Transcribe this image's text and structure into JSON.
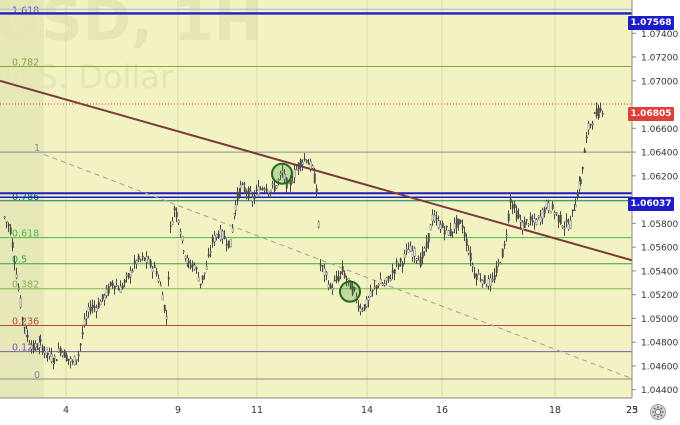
{
  "watermark": {
    "line1": "USD, 1H",
    "line2": "U.S. Dollar"
  },
  "colors": {
    "bg": "#f2f2c2",
    "bg_left": "#e6e8b8",
    "grid": "#d9d9ad",
    "candle": "#4a4a4a",
    "trend_up": "#7b3a3a",
    "trend_dashed": "#a0a0a0",
    "blue_line": "#1c1cc8",
    "fib_1": "#8a8a8a",
    "fib_786": "#0b7a70",
    "fib_618": "#49b84d",
    "fib_5": "#3aa23e",
    "fib_382": "#82b84a",
    "fib_236": "#b84a3a",
    "fib_0": "#8a8a8a",
    "last_price_badge": "#e0403a",
    "blue_badge": "#1c1cc8"
  },
  "chart_data": {
    "type": "candlestick",
    "title": "",
    "x_tick_labels": [
      "4",
      "9",
      "11",
      "14",
      "16",
      "18",
      "23",
      "25"
    ],
    "y_tick_labels": [
      "1.07400",
      "1.07200",
      "1.07000",
      "1.06600",
      "1.06400",
      "1.06200",
      "1.05800",
      "1.05600",
      "1.05400",
      "1.05200",
      "1.05000",
      "1.04800",
      "1.04600",
      "1.04400"
    ],
    "y_ticks": [
      1.074,
      1.072,
      1.07,
      1.066,
      1.064,
      1.062,
      1.058,
      1.056,
      1.054,
      1.052,
      1.05,
      1.048,
      1.046,
      1.044
    ],
    "ylim": [
      1.0433,
      1.0768
    ],
    "price_labels": [
      {
        "text": "1.07568",
        "value": 1.07568,
        "kind": "blue"
      },
      {
        "text": "1.06805",
        "value": 1.06805,
        "kind": "last"
      },
      {
        "text": "1.06037",
        "value": 1.06037,
        "kind": "blue"
      }
    ],
    "fib_levels": [
      {
        "label": "1.618",
        "value": 1.0756,
        "color": "#5a5ab0"
      },
      {
        "label": "0.782",
        "value": 1.0712,
        "color": "#8aa63a"
      },
      {
        "label": "1",
        "value": 1.064,
        "color": "#8a8a8a"
      },
      {
        "label": "0.786",
        "value": 1.0599,
        "color": "#0b7a70"
      },
      {
        "label": "0.618",
        "value": 1.0568,
        "color": "#49b84d"
      },
      {
        "label": "0.5",
        "value": 1.0546,
        "color": "#3aa23e"
      },
      {
        "label": "0.382",
        "value": 1.0525,
        "color": "#82b84a"
      },
      {
        "label": "0.236",
        "value": 1.0494,
        "color": "#b84a3a"
      },
      {
        "label": "0.123",
        "value": 1.0472,
        "color": "#7a5ab0"
      },
      {
        "label": "0",
        "value": 1.0449,
        "color": "#8a8a8a"
      }
    ],
    "trendlines": [
      {
        "name": "descending resistance",
        "from": [
          0,
          1.07
        ],
        "to": [
          640,
          1.0547
        ],
        "style": "solid"
      },
      {
        "name": "dashed channel",
        "from": [
          44,
          1.0638
        ],
        "to": [
          630,
          1.045
        ],
        "style": "dashed"
      }
    ],
    "markers": [
      {
        "shape": "circle",
        "x": 282,
        "y": 1.06218
      },
      {
        "shape": "circle",
        "x": 350,
        "y": 1.05225
      }
    ],
    "price_path": [
      [
        4,
        1.0585
      ],
      [
        10,
        1.0575
      ],
      [
        14,
        1.055
      ],
      [
        18,
        1.0525
      ],
      [
        22,
        1.05
      ],
      [
        27,
        1.0485
      ],
      [
        33,
        1.0475
      ],
      [
        40,
        1.0478
      ],
      [
        47,
        1.047
      ],
      [
        54,
        1.0465
      ],
      [
        60,
        1.0475
      ],
      [
        66,
        1.0468
      ],
      [
        72,
        1.0462
      ],
      [
        78,
        1.047
      ],
      [
        84,
        1.0495
      ],
      [
        90,
        1.051
      ],
      [
        96,
        1.051
      ],
      [
        104,
        1.0518
      ],
      [
        112,
        1.053
      ],
      [
        120,
        1.0525
      ],
      [
        128,
        1.0535
      ],
      [
        136,
        1.0548
      ],
      [
        144,
        1.055
      ],
      [
        150,
        1.0545
      ],
      [
        156,
        1.054
      ],
      [
        162,
        1.052
      ],
      [
        166,
        1.05
      ],
      [
        170,
        1.0575
      ],
      [
        174,
        1.0592
      ],
      [
        178,
        1.0585
      ],
      [
        183,
        1.056
      ],
      [
        188,
        1.0545
      ],
      [
        194,
        1.0545
      ],
      [
        200,
        1.053
      ],
      [
        206,
        1.0542
      ],
      [
        212,
        1.0565
      ],
      [
        218,
        1.0572
      ],
      [
        224,
        1.0568
      ],
      [
        230,
        1.0562
      ],
      [
        235,
        1.0595
      ],
      [
        240,
        1.061
      ],
      [
        246,
        1.0608
      ],
      [
        252,
        1.06
      ],
      [
        258,
        1.0608
      ],
      [
        264,
        1.0612
      ],
      [
        270,
        1.0608
      ],
      [
        276,
        1.0612
      ],
      [
        282,
        1.0622
      ],
      [
        288,
        1.061
      ],
      [
        294,
        1.0622
      ],
      [
        300,
        1.0632
      ],
      [
        306,
        1.0635
      ],
      [
        312,
        1.0625
      ],
      [
        316,
        1.061
      ],
      [
        320,
        1.0545
      ],
      [
        326,
        1.0535
      ],
      [
        330,
        1.0525
      ],
      [
        336,
        1.0532
      ],
      [
        342,
        1.054
      ],
      [
        348,
        1.053
      ],
      [
        354,
        1.0522
      ],
      [
        360,
        1.0508
      ],
      [
        366,
        1.0512
      ],
      [
        372,
        1.0522
      ],
      [
        378,
        1.053
      ],
      [
        384,
        1.0528
      ],
      [
        390,
        1.0535
      ],
      [
        396,
        1.0545
      ],
      [
        402,
        1.0548
      ],
      [
        408,
        1.0558
      ],
      [
        414,
        1.0555
      ],
      [
        420,
        1.0548
      ],
      [
        426,
        1.056
      ],
      [
        432,
        1.0585
      ],
      [
        438,
        1.058
      ],
      [
        444,
        1.0575
      ],
      [
        450,
        1.0572
      ],
      [
        456,
        1.058
      ],
      [
        462,
        1.0578
      ],
      [
        468,
        1.0558
      ],
      [
        474,
        1.0538
      ],
      [
        480,
        1.0535
      ],
      [
        486,
        1.053
      ],
      [
        492,
        1.053
      ],
      [
        498,
        1.0545
      ],
      [
        504,
        1.056
      ],
      [
        510,
        1.06
      ],
      [
        516,
        1.0588
      ],
      [
        522,
        1.0578
      ],
      [
        528,
        1.0582
      ],
      [
        534,
        1.058
      ],
      [
        540,
        1.0585
      ],
      [
        546,
        1.0595
      ],
      [
        552,
        1.0592
      ],
      [
        558,
        1.0585
      ],
      [
        564,
        1.0578
      ],
      [
        570,
        1.058
      ],
      [
        575,
        1.0598
      ],
      [
        580,
        1.0615
      ],
      [
        584,
        1.064
      ],
      [
        588,
        1.066
      ],
      [
        592,
        1.0668
      ],
      [
        596,
        1.0672
      ],
      [
        600,
        1.0675
      ],
      [
        604,
        1.0678
      ]
    ]
  }
}
